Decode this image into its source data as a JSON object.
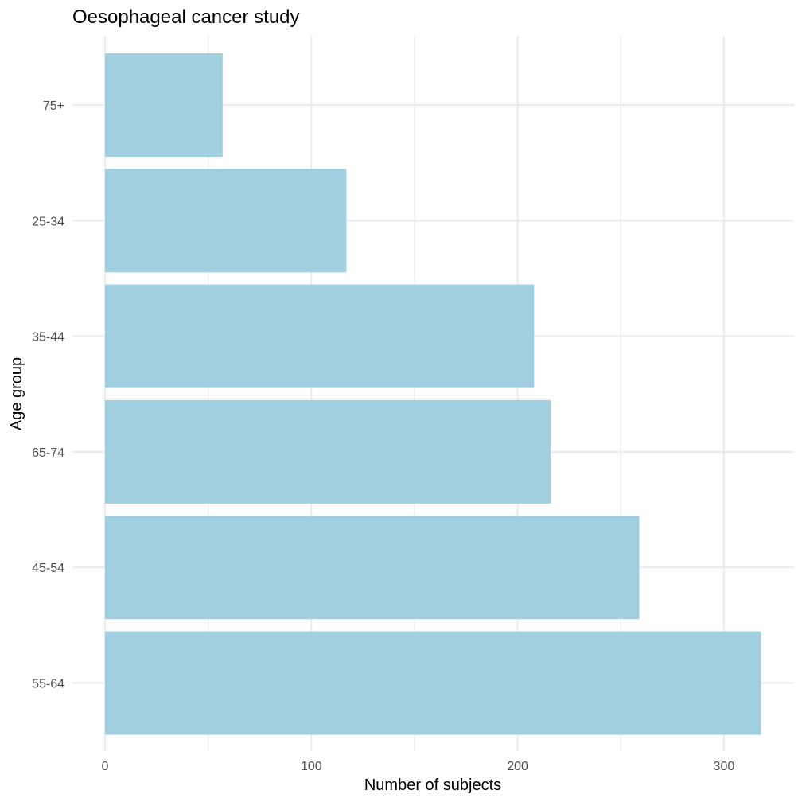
{
  "chart_data": {
    "type": "bar",
    "orientation": "horizontal",
    "title": "Oesophageal cancer study",
    "xlabel": "Number of subjects",
    "ylabel": "Age group",
    "categories": [
      "55-64",
      "45-54",
      "65-74",
      "35-44",
      "25-34",
      "75+"
    ],
    "values": [
      318,
      259,
      216,
      208,
      117,
      57
    ],
    "xlim": [
      0,
      330
    ],
    "xticks": [
      0,
      100,
      200,
      300
    ],
    "xtick_labels": [
      "0",
      "100",
      "200",
      "300"
    ],
    "grid": true,
    "bar_color": "#a0cfe0",
    "grid_color": "#ebebeb"
  }
}
